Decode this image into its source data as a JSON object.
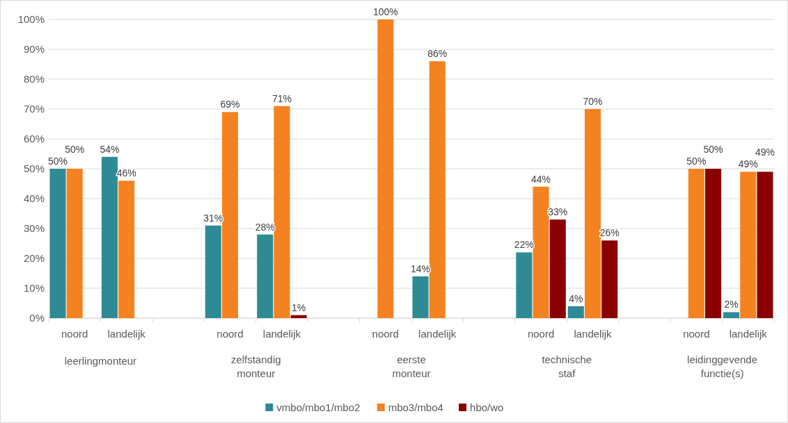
{
  "chart_data": {
    "type": "bar",
    "categories": [
      "noord",
      "landelijk",
      null,
      "noord",
      "landelijk",
      null,
      "noord",
      "landelijk",
      null,
      "noord",
      "landelijk",
      null,
      "noord",
      "landelijk"
    ],
    "series": [
      {
        "name": "vmbo/mbo1/mbo2",
        "color": "#2e8b96",
        "values": [
          50,
          54,
          null,
          31,
          28,
          null,
          null,
          14,
          null,
          22,
          4,
          null,
          null,
          2
        ],
        "value_labels": [
          "50%",
          "54%",
          null,
          "31%",
          "28%",
          null,
          null,
          "14%",
          null,
          "22%",
          "4%",
          null,
          null,
          "2%"
        ]
      },
      {
        "name": "mbo3/mbo4",
        "color": "#f58220",
        "values": [
          50,
          46,
          null,
          69,
          71,
          null,
          100,
          86,
          null,
          44,
          70,
          null,
          50,
          49
        ],
        "value_labels": [
          "50%",
          "46%",
          null,
          "69%",
          "71%",
          null,
          "100%",
          "86%",
          null,
          "44%",
          "70%",
          null,
          "50%",
          "49%"
        ]
      },
      {
        "name": "hbo/wo",
        "color": "#8b0000",
        "values": [
          null,
          null,
          null,
          null,
          1,
          null,
          null,
          null,
          null,
          33,
          26,
          null,
          50,
          49
        ],
        "value_labels": [
          null,
          null,
          null,
          null,
          "1%",
          null,
          null,
          null,
          null,
          "33%",
          "26%",
          null,
          "50%",
          "49%"
        ]
      }
    ],
    "annotations": [
      "leerlingmonteur",
      "zelfstandig\nmonteur",
      "eerste\nmonteur",
      "technische\nstaf",
      "leidinggevende\nfunctie(s)"
    ],
    "ylim": [
      0,
      100
    ],
    "yticks": [
      {
        "value": 0,
        "label": "0%"
      },
      {
        "value": 10,
        "label": "10%"
      },
      {
        "value": 20,
        "label": "20%"
      },
      {
        "value": 30,
        "label": "30%"
      },
      {
        "value": 40,
        "label": "40%"
      },
      {
        "value": 50,
        "label": "50%"
      },
      {
        "value": 60,
        "label": "60%"
      },
      {
        "value": 70,
        "label": "70%"
      },
      {
        "value": 80,
        "label": "80%"
      },
      {
        "value": 90,
        "label": "90%"
      },
      {
        "value": 100,
        "label": "100%"
      }
    ],
    "grid": "y",
    "legend": "bottom"
  }
}
